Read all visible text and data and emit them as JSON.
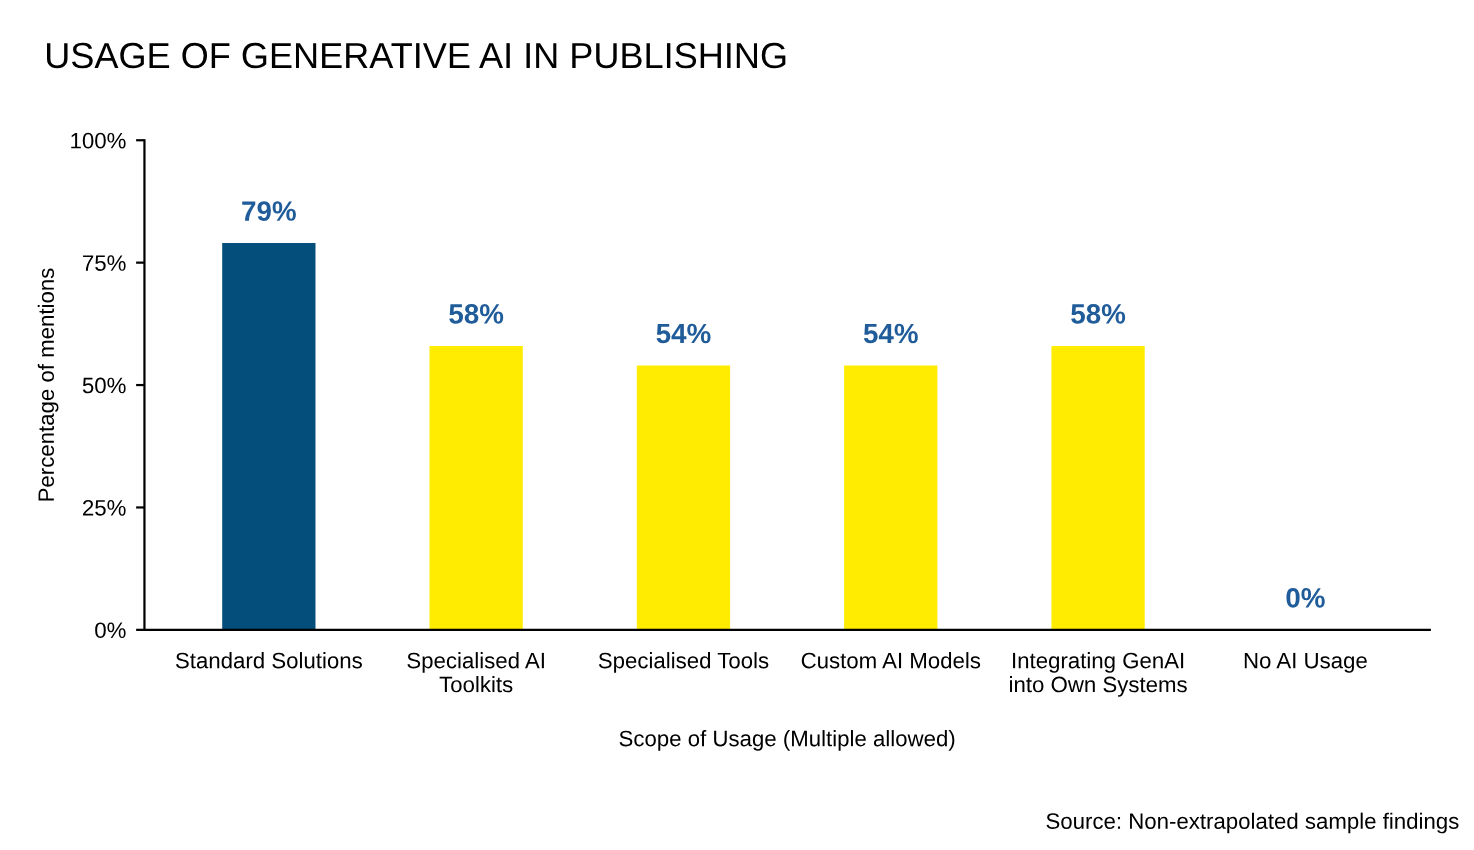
{
  "chart_data": {
    "type": "bar",
    "title": "USAGE OF GENERATIVE AI IN PUBLISHING",
    "categories": [
      "Standard Solutions",
      "Specialised AI\nToolkits",
      "Specialised Tools",
      "Custom AI Models",
      "Integrating GenAI\ninto Own Systems",
      "No AI Usage"
    ],
    "values": [
      79,
      58,
      54,
      54,
      58,
      0
    ],
    "colors": [
      "#034e7b",
      "#ffec00",
      "#ffec00",
      "#ffec00",
      "#ffec00",
      "#ffec00"
    ],
    "value_labels": [
      "79%",
      "58%",
      "54%",
      "54%",
      "58%",
      "0%"
    ],
    "xlabel": "Scope of Usage (Multiple allowed)",
    "ylabel": "Percentage of mentions",
    "ylim": [
      0,
      100
    ],
    "yticks": [
      {
        "value": 0,
        "label": "0%"
      },
      {
        "value": 25,
        "label": "25%"
      },
      {
        "value": 50,
        "label": "50%"
      },
      {
        "value": 75,
        "label": "75%"
      },
      {
        "value": 100,
        "label": "100%"
      }
    ],
    "grid": false,
    "legend": false,
    "annotations": [
      "Source: Non-extrapolated sample findings"
    ]
  }
}
